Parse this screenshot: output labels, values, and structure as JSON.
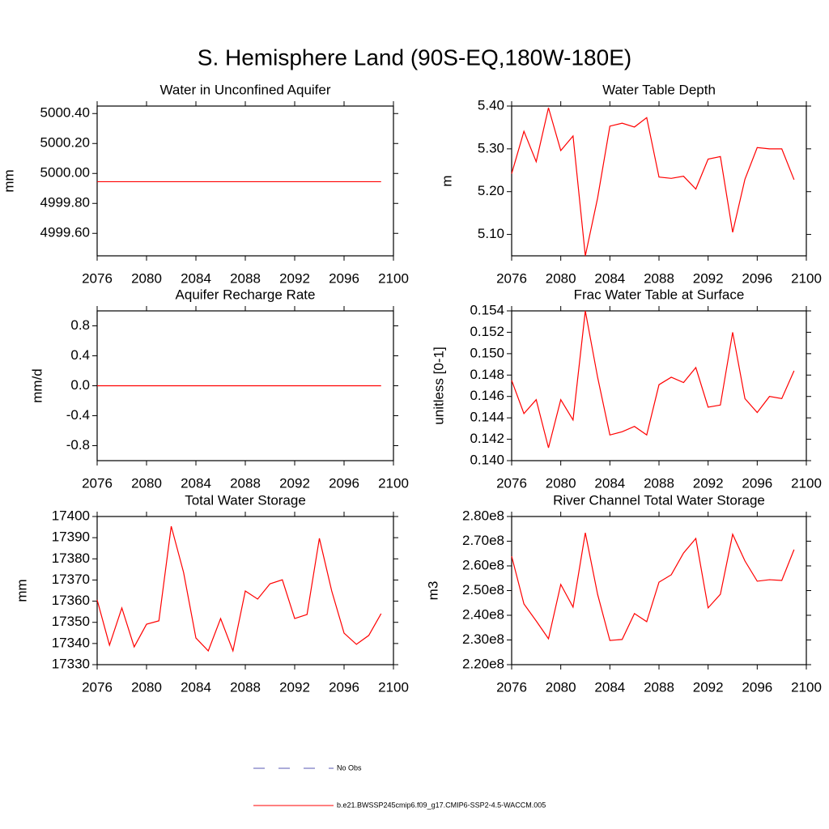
{
  "title": "S. Hemisphere Land (90S-EQ,180W-180E)",
  "legend": [
    {
      "name": "No Obs",
      "color": "#5a5ab4",
      "dash": true
    },
    {
      "name": "b.e21.BWSSP245cmip6.f09_g17.CMIP6-SSP2-4.5-WACCM.005",
      "color": "#ff0000",
      "dash": false
    }
  ],
  "chart_data": [
    {
      "type": "line",
      "title": "Water in Unconfined Aquifer",
      "ylabel": "mm",
      "color": "#ff0000",
      "x": [
        2076,
        2077,
        2078,
        2079,
        2080,
        2081,
        2082,
        2083,
        2084,
        2085,
        2086,
        2087,
        2088,
        2089,
        2090,
        2091,
        2092,
        2093,
        2094,
        2095,
        2096,
        2097,
        2098,
        2099
      ],
      "values": [
        4999.945,
        4999.945,
        4999.945,
        4999.945,
        4999.945,
        4999.945,
        4999.945,
        4999.945,
        4999.945,
        4999.945,
        4999.945,
        4999.945,
        4999.945,
        4999.945,
        4999.945,
        4999.945,
        4999.945,
        4999.945,
        4999.945,
        4999.945,
        4999.945,
        4999.945,
        4999.945,
        4999.945
      ],
      "xlim": [
        2076,
        2100
      ],
      "xticks": [
        2076,
        2080,
        2084,
        2088,
        2092,
        2096,
        2100
      ],
      "ylim": [
        4999.45,
        5000.45
      ],
      "yticks": [
        {
          "value": 4999.6,
          "label": "4999.60"
        },
        {
          "value": 4999.8,
          "label": "4999.80"
        },
        {
          "value": 5000.0,
          "label": "5000.00"
        },
        {
          "value": 5000.2,
          "label": "5000.20"
        },
        {
          "value": 5000.4,
          "label": "5000.40"
        }
      ]
    },
    {
      "type": "line",
      "title": "Water Table Depth",
      "ylabel": "m",
      "color": "#ff0000",
      "x": [
        2076,
        2077,
        2078,
        2079,
        2080,
        2081,
        2082,
        2083,
        2084,
        2085,
        2086,
        2087,
        2088,
        2089,
        2090,
        2091,
        2092,
        2093,
        2094,
        2095,
        2096,
        2097,
        2098,
        2099
      ],
      "values": [
        5.242,
        5.341,
        5.27,
        5.396,
        5.296,
        5.33,
        5.05,
        5.185,
        5.353,
        5.36,
        5.351,
        5.373,
        5.234,
        5.231,
        5.236,
        5.206,
        5.276,
        5.282,
        5.105,
        5.229,
        5.303,
        5.3,
        5.3,
        5.228
      ],
      "xlim": [
        2076,
        2100
      ],
      "xticks": [
        2076,
        2080,
        2084,
        2088,
        2092,
        2096,
        2100
      ],
      "ylim": [
        5.05,
        5.4
      ],
      "yticks": [
        {
          "value": 5.1,
          "label": "5.10"
        },
        {
          "value": 5.2,
          "label": "5.20"
        },
        {
          "value": 5.3,
          "label": "5.30"
        },
        {
          "value": 5.4,
          "label": "5.40"
        }
      ]
    },
    {
      "type": "line",
      "title": "Aquifer Recharge Rate",
      "ylabel": "mm/d",
      "color": "#ff0000",
      "x": [
        2076,
        2077,
        2078,
        2079,
        2080,
        2081,
        2082,
        2083,
        2084,
        2085,
        2086,
        2087,
        2088,
        2089,
        2090,
        2091,
        2092,
        2093,
        2094,
        2095,
        2096,
        2097,
        2098,
        2099
      ],
      "values": [
        0,
        0,
        0,
        0,
        0,
        0,
        0,
        0,
        0,
        0,
        0,
        0,
        0,
        0,
        0,
        0,
        0,
        0,
        0,
        0,
        0,
        0,
        0,
        0
      ],
      "xlim": [
        2076,
        2100
      ],
      "xticks": [
        2076,
        2080,
        2084,
        2088,
        2092,
        2096,
        2100
      ],
      "ylim": [
        -1,
        1
      ],
      "yticks": [
        -0.8,
        -0.4,
        {
          "value": 0,
          "label": "0.0"
        },
        0.4,
        0.8
      ]
    },
    {
      "type": "line",
      "title": "Frac Water Table at Surface",
      "ylabel": "unitless [0-1]",
      "color": "#ff0000",
      "x": [
        2076,
        2077,
        2078,
        2079,
        2080,
        2081,
        2082,
        2083,
        2084,
        2085,
        2086,
        2087,
        2088,
        2089,
        2090,
        2091,
        2092,
        2093,
        2094,
        2095,
        2096,
        2097,
        2098,
        2099
      ],
      "values": [
        0.1475,
        0.1444,
        0.1457,
        0.1412,
        0.1457,
        0.1438,
        0.154,
        0.1478,
        0.1424,
        0.1427,
        0.1432,
        0.1424,
        0.1471,
        0.1478,
        0.1473,
        0.1487,
        0.145,
        0.1452,
        0.152,
        0.1458,
        0.1445,
        0.146,
        0.1458,
        0.1484
      ],
      "xlim": [
        2076,
        2100
      ],
      "xticks": [
        2076,
        2080,
        2084,
        2088,
        2092,
        2096,
        2100
      ],
      "ylim": [
        0.14,
        0.154
      ],
      "yticks": [
        {
          "value": 0.14,
          "label": "0.140"
        },
        0.142,
        0.144,
        0.146,
        0.148,
        {
          "value": 0.15,
          "label": "0.150"
        },
        0.152,
        0.154
      ]
    },
    {
      "type": "line",
      "title": "Total Water Storage",
      "ylabel": "mm",
      "color": "#ff0000",
      "x": [
        2076,
        2077,
        2078,
        2079,
        2080,
        2081,
        2082,
        2083,
        2084,
        2085,
        2086,
        2087,
        2088,
        2089,
        2090,
        2091,
        2092,
        2093,
        2094,
        2095,
        2096,
        2097,
        2098,
        2099
      ],
      "values": [
        17360.6,
        17339.2,
        17356.8,
        17338.4,
        17349.1,
        17350.7,
        17395.4,
        17373.6,
        17342.6,
        17336.5,
        17351.8,
        17336.5,
        17364.8,
        17361,
        17368.2,
        17370.1,
        17351.8,
        17353.7,
        17389.7,
        17364.8,
        17344.9,
        17339.6,
        17343.8,
        17354.1
      ],
      "xlim": [
        2076,
        2100
      ],
      "xticks": [
        2076,
        2080,
        2084,
        2088,
        2092,
        2096,
        2100
      ],
      "ylim": [
        17330,
        17400
      ],
      "yticks": [
        17330,
        17340,
        17350,
        17360,
        17370,
        17380,
        17390,
        17400
      ]
    },
    {
      "type": "line",
      "title": "River Channel Total Water Storage",
      "ylabel": "m3",
      "color": "#ff0000",
      "x": [
        2076,
        2077,
        2078,
        2079,
        2080,
        2081,
        2082,
        2083,
        2084,
        2085,
        2086,
        2087,
        2088,
        2089,
        2090,
        2091,
        2092,
        2093,
        2094,
        2095,
        2096,
        2097,
        2098,
        2099
      ],
      "values": [
        263900000,
        244600000,
        237700000,
        230500000,
        252500000,
        243300000,
        273400000,
        248500000,
        229800000,
        230200000,
        240700000,
        237400000,
        253400000,
        256400000,
        265200000,
        271100000,
        243000000,
        248500000,
        272800000,
        262000000,
        253800000,
        254400000,
        254100000,
        266600000
      ],
      "xlim": [
        2076,
        2100
      ],
      "xticks": [
        2076,
        2080,
        2084,
        2088,
        2092,
        2096,
        2100
      ],
      "ylim": [
        220000000,
        280000000
      ],
      "yticks": [
        {
          "value": 220000000,
          "label": "2.20e8"
        },
        {
          "value": 230000000,
          "label": "2.30e8"
        },
        {
          "value": 240000000,
          "label": "2.40e8"
        },
        {
          "value": 250000000,
          "label": "2.50e8"
        },
        {
          "value": 260000000,
          "label": "2.60e8"
        },
        {
          "value": 270000000,
          "label": "2.70e8"
        },
        {
          "value": 280000000,
          "label": "2.80e8"
        }
      ]
    }
  ]
}
